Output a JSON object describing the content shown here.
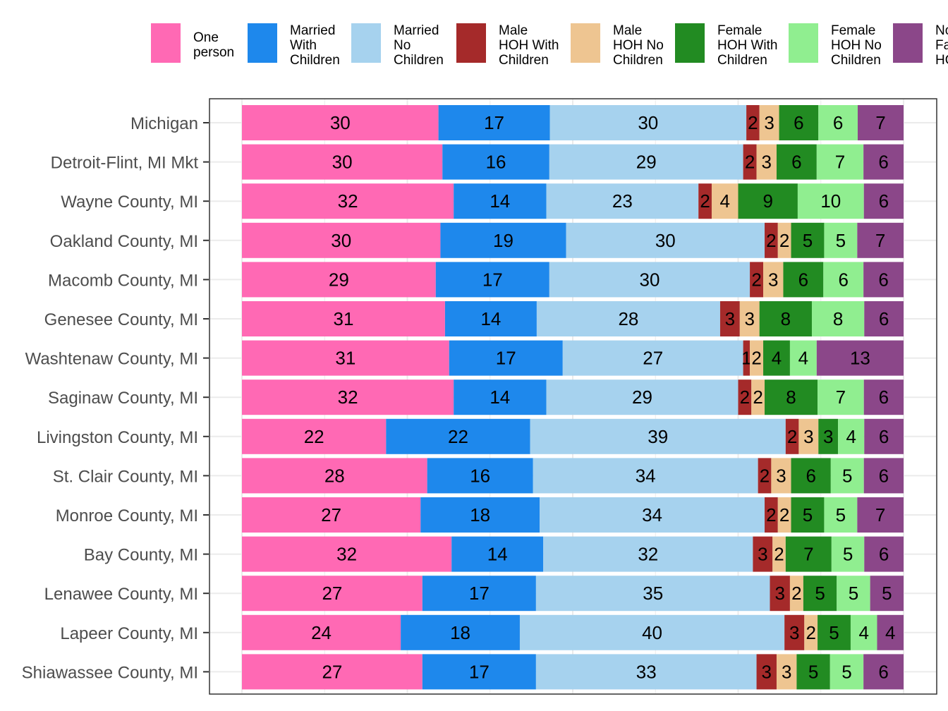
{
  "chart_data": {
    "type": "bar",
    "orientation": "horizontal",
    "stacked": "percent",
    "title": "",
    "xlabel": "",
    "ylabel": "",
    "xlim": [
      0,
      100
    ],
    "grid": true,
    "legend_position": "top",
    "categories": [
      "Michigan",
      "Detroit-Flint, MI Mkt",
      "Wayne County, MI",
      "Oakland County, MI",
      "Macomb County, MI",
      "Genesee County, MI",
      "Washtenaw County, MI",
      "Saginaw County, MI",
      "Livingston County, MI",
      "St. Clair County, MI",
      "Monroe County, MI",
      "Bay County, MI",
      "Lenawee County, MI",
      "Lapeer County, MI",
      "Shiawassee County, MI"
    ],
    "series": [
      {
        "name": "One person",
        "color": "#FF69B4",
        "values": [
          30,
          30,
          32,
          30,
          29,
          31,
          31,
          32,
          22,
          28,
          27,
          32,
          27,
          24,
          27
        ]
      },
      {
        "name": "Married With Children",
        "color": "#1E88EC",
        "values": [
          17,
          16,
          14,
          19,
          17,
          14,
          17,
          14,
          22,
          16,
          18,
          14,
          17,
          18,
          17
        ]
      },
      {
        "name": "Married No Children",
        "color": "#A6D2EE",
        "values": [
          30,
          29,
          23,
          30,
          30,
          28,
          27,
          29,
          39,
          34,
          34,
          32,
          35,
          40,
          33
        ]
      },
      {
        "name": "Male HOH With Children",
        "color": "#A52A2A",
        "values": [
          2,
          2,
          2,
          2,
          2,
          3,
          1,
          2,
          2,
          2,
          2,
          3,
          3,
          3,
          3
        ]
      },
      {
        "name": "Male HOH No Children",
        "color": "#EEC591",
        "values": [
          3,
          3,
          4,
          2,
          3,
          3,
          2,
          2,
          3,
          3,
          2,
          2,
          2,
          2,
          3
        ]
      },
      {
        "name": "Female HOH With Children",
        "color": "#228B22",
        "values": [
          6,
          6,
          9,
          5,
          6,
          8,
          4,
          8,
          3,
          6,
          5,
          7,
          5,
          5,
          5
        ]
      },
      {
        "name": "Female HOH No Children",
        "color": "#90EE90",
        "values": [
          6,
          7,
          10,
          5,
          6,
          8,
          4,
          7,
          4,
          5,
          5,
          5,
          5,
          4,
          5
        ]
      },
      {
        "name": "Non Family HOH",
        "color": "#8B4789",
        "values": [
          7,
          6,
          6,
          7,
          6,
          6,
          13,
          6,
          6,
          6,
          7,
          6,
          5,
          4,
          6
        ]
      }
    ]
  }
}
